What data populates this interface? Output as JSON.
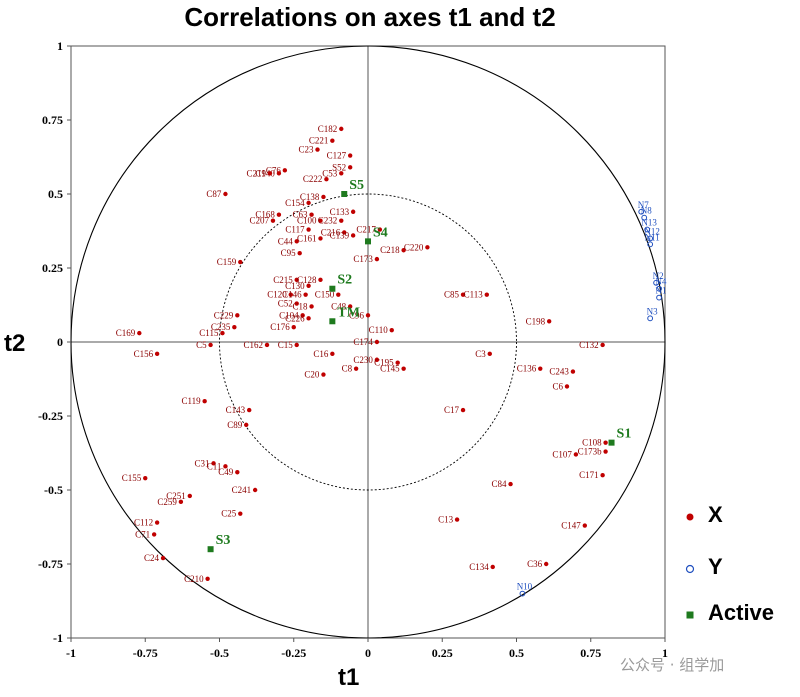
{
  "chart_data": {
    "type": "scatter",
    "title": "Correlations on axes t1 and t2",
    "xlabel": "t1",
    "ylabel": "t2",
    "xlim": [
      -1,
      1
    ],
    "ylim": [
      -1,
      1
    ],
    "x_ticks": [
      "-1",
      "-0.75",
      "-0.5",
      "-0.25",
      "0",
      "0.25",
      "0.5",
      "0.75",
      "1"
    ],
    "y_ticks": [
      "1",
      "0.75",
      "0.5",
      "0.25",
      "0",
      "-0.25",
      "-0.5",
      "-0.75",
      "-1"
    ],
    "circles": [
      1.0,
      0.5
    ],
    "legend": [
      {
        "label": "X",
        "color": "#c00000",
        "marker": "filled-circle"
      },
      {
        "label": "Y",
        "color": "#1f4fbf",
        "marker": "open-circle"
      },
      {
        "label": "Active",
        "color": "#1e7a1e",
        "marker": "square"
      }
    ],
    "series": [
      {
        "name": "X",
        "color": "#c00000",
        "points": [
          {
            "label": "C182",
            "x": -0.09,
            "y": 0.72
          },
          {
            "label": "C221",
            "x": -0.12,
            "y": 0.68
          },
          {
            "label": "C23",
            "x": -0.17,
            "y": 0.65
          },
          {
            "label": "C127",
            "x": -0.06,
            "y": 0.63
          },
          {
            "label": "C76",
            "x": -0.28,
            "y": 0.58
          },
          {
            "label": "C140",
            "x": -0.3,
            "y": 0.57
          },
          {
            "label": "C219",
            "x": -0.33,
            "y": 0.57
          },
          {
            "label": "C53",
            "x": -0.09,
            "y": 0.57
          },
          {
            "label": "C222",
            "x": -0.14,
            "y": 0.55
          },
          {
            "label": "S52",
            "x": -0.06,
            "y": 0.59
          },
          {
            "label": "C87",
            "x": -0.48,
            "y": 0.5
          },
          {
            "label": "C154",
            "x": -0.2,
            "y": 0.47
          },
          {
            "label": "C138",
            "x": -0.15,
            "y": 0.49
          },
          {
            "label": "C168",
            "x": -0.3,
            "y": 0.43
          },
          {
            "label": "C207",
            "x": -0.32,
            "y": 0.41
          },
          {
            "label": "C63",
            "x": -0.19,
            "y": 0.43
          },
          {
            "label": "C133",
            "x": -0.05,
            "y": 0.44
          },
          {
            "label": "C100",
            "x": -0.16,
            "y": 0.41
          },
          {
            "label": "C232",
            "x": -0.09,
            "y": 0.41
          },
          {
            "label": "C117",
            "x": -0.2,
            "y": 0.38
          },
          {
            "label": "C216",
            "x": -0.08,
            "y": 0.37
          },
          {
            "label": "C217",
            "x": 0.04,
            "y": 0.38
          },
          {
            "label": "C139",
            "x": -0.05,
            "y": 0.36
          },
          {
            "label": "C44",
            "x": -0.24,
            "y": 0.34
          },
          {
            "label": "C161",
            "x": -0.16,
            "y": 0.35
          },
          {
            "label": "C95",
            "x": -0.23,
            "y": 0.3
          },
          {
            "label": "C218",
            "x": 0.12,
            "y": 0.31
          },
          {
            "label": "C220",
            "x": 0.2,
            "y": 0.32
          },
          {
            "label": "C173",
            "x": 0.03,
            "y": 0.28
          },
          {
            "label": "C159",
            "x": -0.43,
            "y": 0.27
          },
          {
            "label": "C215",
            "x": -0.24,
            "y": 0.21
          },
          {
            "label": "C128",
            "x": -0.16,
            "y": 0.21
          },
          {
            "label": "C130",
            "x": -0.2,
            "y": 0.19
          },
          {
            "label": "C120",
            "x": -0.26,
            "y": 0.16
          },
          {
            "label": "C146",
            "x": -0.21,
            "y": 0.16
          },
          {
            "label": "C150",
            "x": -0.1,
            "y": 0.16
          },
          {
            "label": "C52",
            "x": -0.24,
            "y": 0.13
          },
          {
            "label": "C18",
            "x": -0.19,
            "y": 0.12
          },
          {
            "label": "C48",
            "x": -0.06,
            "y": 0.12
          },
          {
            "label": "C85",
            "x": 0.32,
            "y": 0.16
          },
          {
            "label": "C113",
            "x": 0.4,
            "y": 0.16
          },
          {
            "label": "C229",
            "x": -0.44,
            "y": 0.09
          },
          {
            "label": "C104",
            "x": -0.22,
            "y": 0.09
          },
          {
            "label": "C226",
            "x": -0.2,
            "y": 0.08
          },
          {
            "label": "C96",
            "x": 0.0,
            "y": 0.09
          },
          {
            "label": "C198",
            "x": 0.61,
            "y": 0.07
          },
          {
            "label": "C176",
            "x": -0.25,
            "y": 0.05
          },
          {
            "label": "C235",
            "x": -0.45,
            "y": 0.05
          },
          {
            "label": "C115",
            "x": -0.49,
            "y": 0.03
          },
          {
            "label": "C169",
            "x": -0.77,
            "y": 0.03
          },
          {
            "label": "C110",
            "x": 0.08,
            "y": 0.04
          },
          {
            "label": "C174",
            "x": 0.03,
            "y": 0.0
          },
          {
            "label": "C5",
            "x": -0.53,
            "y": -0.01
          },
          {
            "label": "C162",
            "x": -0.34,
            "y": -0.01
          },
          {
            "label": "C15",
            "x": -0.24,
            "y": -0.01
          },
          {
            "label": "C156",
            "x": -0.71,
            "y": -0.04
          },
          {
            "label": "C132",
            "x": 0.79,
            "y": -0.01
          },
          {
            "label": "C16",
            "x": -0.12,
            "y": -0.04
          },
          {
            "label": "C3",
            "x": 0.41,
            "y": -0.04
          },
          {
            "label": "C230",
            "x": 0.03,
            "y": -0.06
          },
          {
            "label": "C195",
            "x": 0.1,
            "y": -0.07
          },
          {
            "label": "C145",
            "x": 0.12,
            "y": -0.09
          },
          {
            "label": "C8",
            "x": -0.04,
            "y": -0.09
          },
          {
            "label": "C20",
            "x": -0.15,
            "y": -0.11
          },
          {
            "label": "C136",
            "x": 0.58,
            "y": -0.09
          },
          {
            "label": "C243",
            "x": 0.69,
            "y": -0.1
          },
          {
            "label": "C6",
            "x": 0.67,
            "y": -0.15
          },
          {
            "label": "C119",
            "x": -0.55,
            "y": -0.2
          },
          {
            "label": "C143",
            "x": -0.4,
            "y": -0.23
          },
          {
            "label": "C17",
            "x": 0.32,
            "y": -0.23
          },
          {
            "label": "C89",
            "x": -0.41,
            "y": -0.28
          },
          {
            "label": "C107",
            "x": 0.7,
            "y": -0.38
          },
          {
            "label": "C108",
            "x": 0.8,
            "y": -0.34
          },
          {
            "label": "C173b",
            "x": 0.8,
            "y": -0.37
          },
          {
            "label": "C171",
            "x": 0.79,
            "y": -0.45
          },
          {
            "label": "C31",
            "x": -0.52,
            "y": -0.41
          },
          {
            "label": "C11",
            "x": -0.48,
            "y": -0.42
          },
          {
            "label": "C49",
            "x": -0.44,
            "y": -0.44
          },
          {
            "label": "C155",
            "x": -0.75,
            "y": -0.46
          },
          {
            "label": "C241",
            "x": -0.38,
            "y": -0.5
          },
          {
            "label": "C84",
            "x": 0.48,
            "y": -0.48
          },
          {
            "label": "C251",
            "x": -0.6,
            "y": -0.52
          },
          {
            "label": "C259",
            "x": -0.63,
            "y": -0.54
          },
          {
            "label": "C25",
            "x": -0.43,
            "y": -0.58
          },
          {
            "label": "C112",
            "x": -0.71,
            "y": -0.61
          },
          {
            "label": "C13",
            "x": 0.3,
            "y": -0.6
          },
          {
            "label": "C147",
            "x": 0.73,
            "y": -0.62
          },
          {
            "label": "C71",
            "x": -0.72,
            "y": -0.65
          },
          {
            "label": "C24",
            "x": -0.69,
            "y": -0.73
          },
          {
            "label": "C134",
            "x": 0.42,
            "y": -0.76
          },
          {
            "label": "C36",
            "x": 0.6,
            "y": -0.75
          },
          {
            "label": "C210",
            "x": -0.54,
            "y": -0.8
          }
        ]
      },
      {
        "name": "Y",
        "color": "#1f4fbf",
        "points": [
          {
            "label": "N7",
            "x": 0.92,
            "y": 0.44
          },
          {
            "label": "N8",
            "x": 0.93,
            "y": 0.42
          },
          {
            "label": "N13",
            "x": 0.94,
            "y": 0.38
          },
          {
            "label": "N12",
            "x": 0.95,
            "y": 0.35
          },
          {
            "label": "N11",
            "x": 0.95,
            "y": 0.33
          },
          {
            "label": "N2",
            "x": 0.97,
            "y": 0.2
          },
          {
            "label": "N4",
            "x": 0.98,
            "y": 0.18
          },
          {
            "label": "N1",
            "x": 0.98,
            "y": 0.15
          },
          {
            "label": "N3",
            "x": 0.95,
            "y": 0.08
          },
          {
            "label": "N10",
            "x": 0.52,
            "y": -0.85
          }
        ]
      },
      {
        "name": "Active",
        "color": "#1e7a1e",
        "points": [
          {
            "label": "S5",
            "x": -0.08,
            "y": 0.5
          },
          {
            "label": "S4",
            "x": 0.0,
            "y": 0.34
          },
          {
            "label": "S2",
            "x": -0.12,
            "y": 0.18
          },
          {
            "label": "TM",
            "x": -0.12,
            "y": 0.07
          },
          {
            "label": "S1",
            "x": 0.82,
            "y": -0.34
          },
          {
            "label": "S3",
            "x": -0.53,
            "y": -0.7
          }
        ]
      }
    ]
  },
  "watermark": "公众号 · 组学加"
}
